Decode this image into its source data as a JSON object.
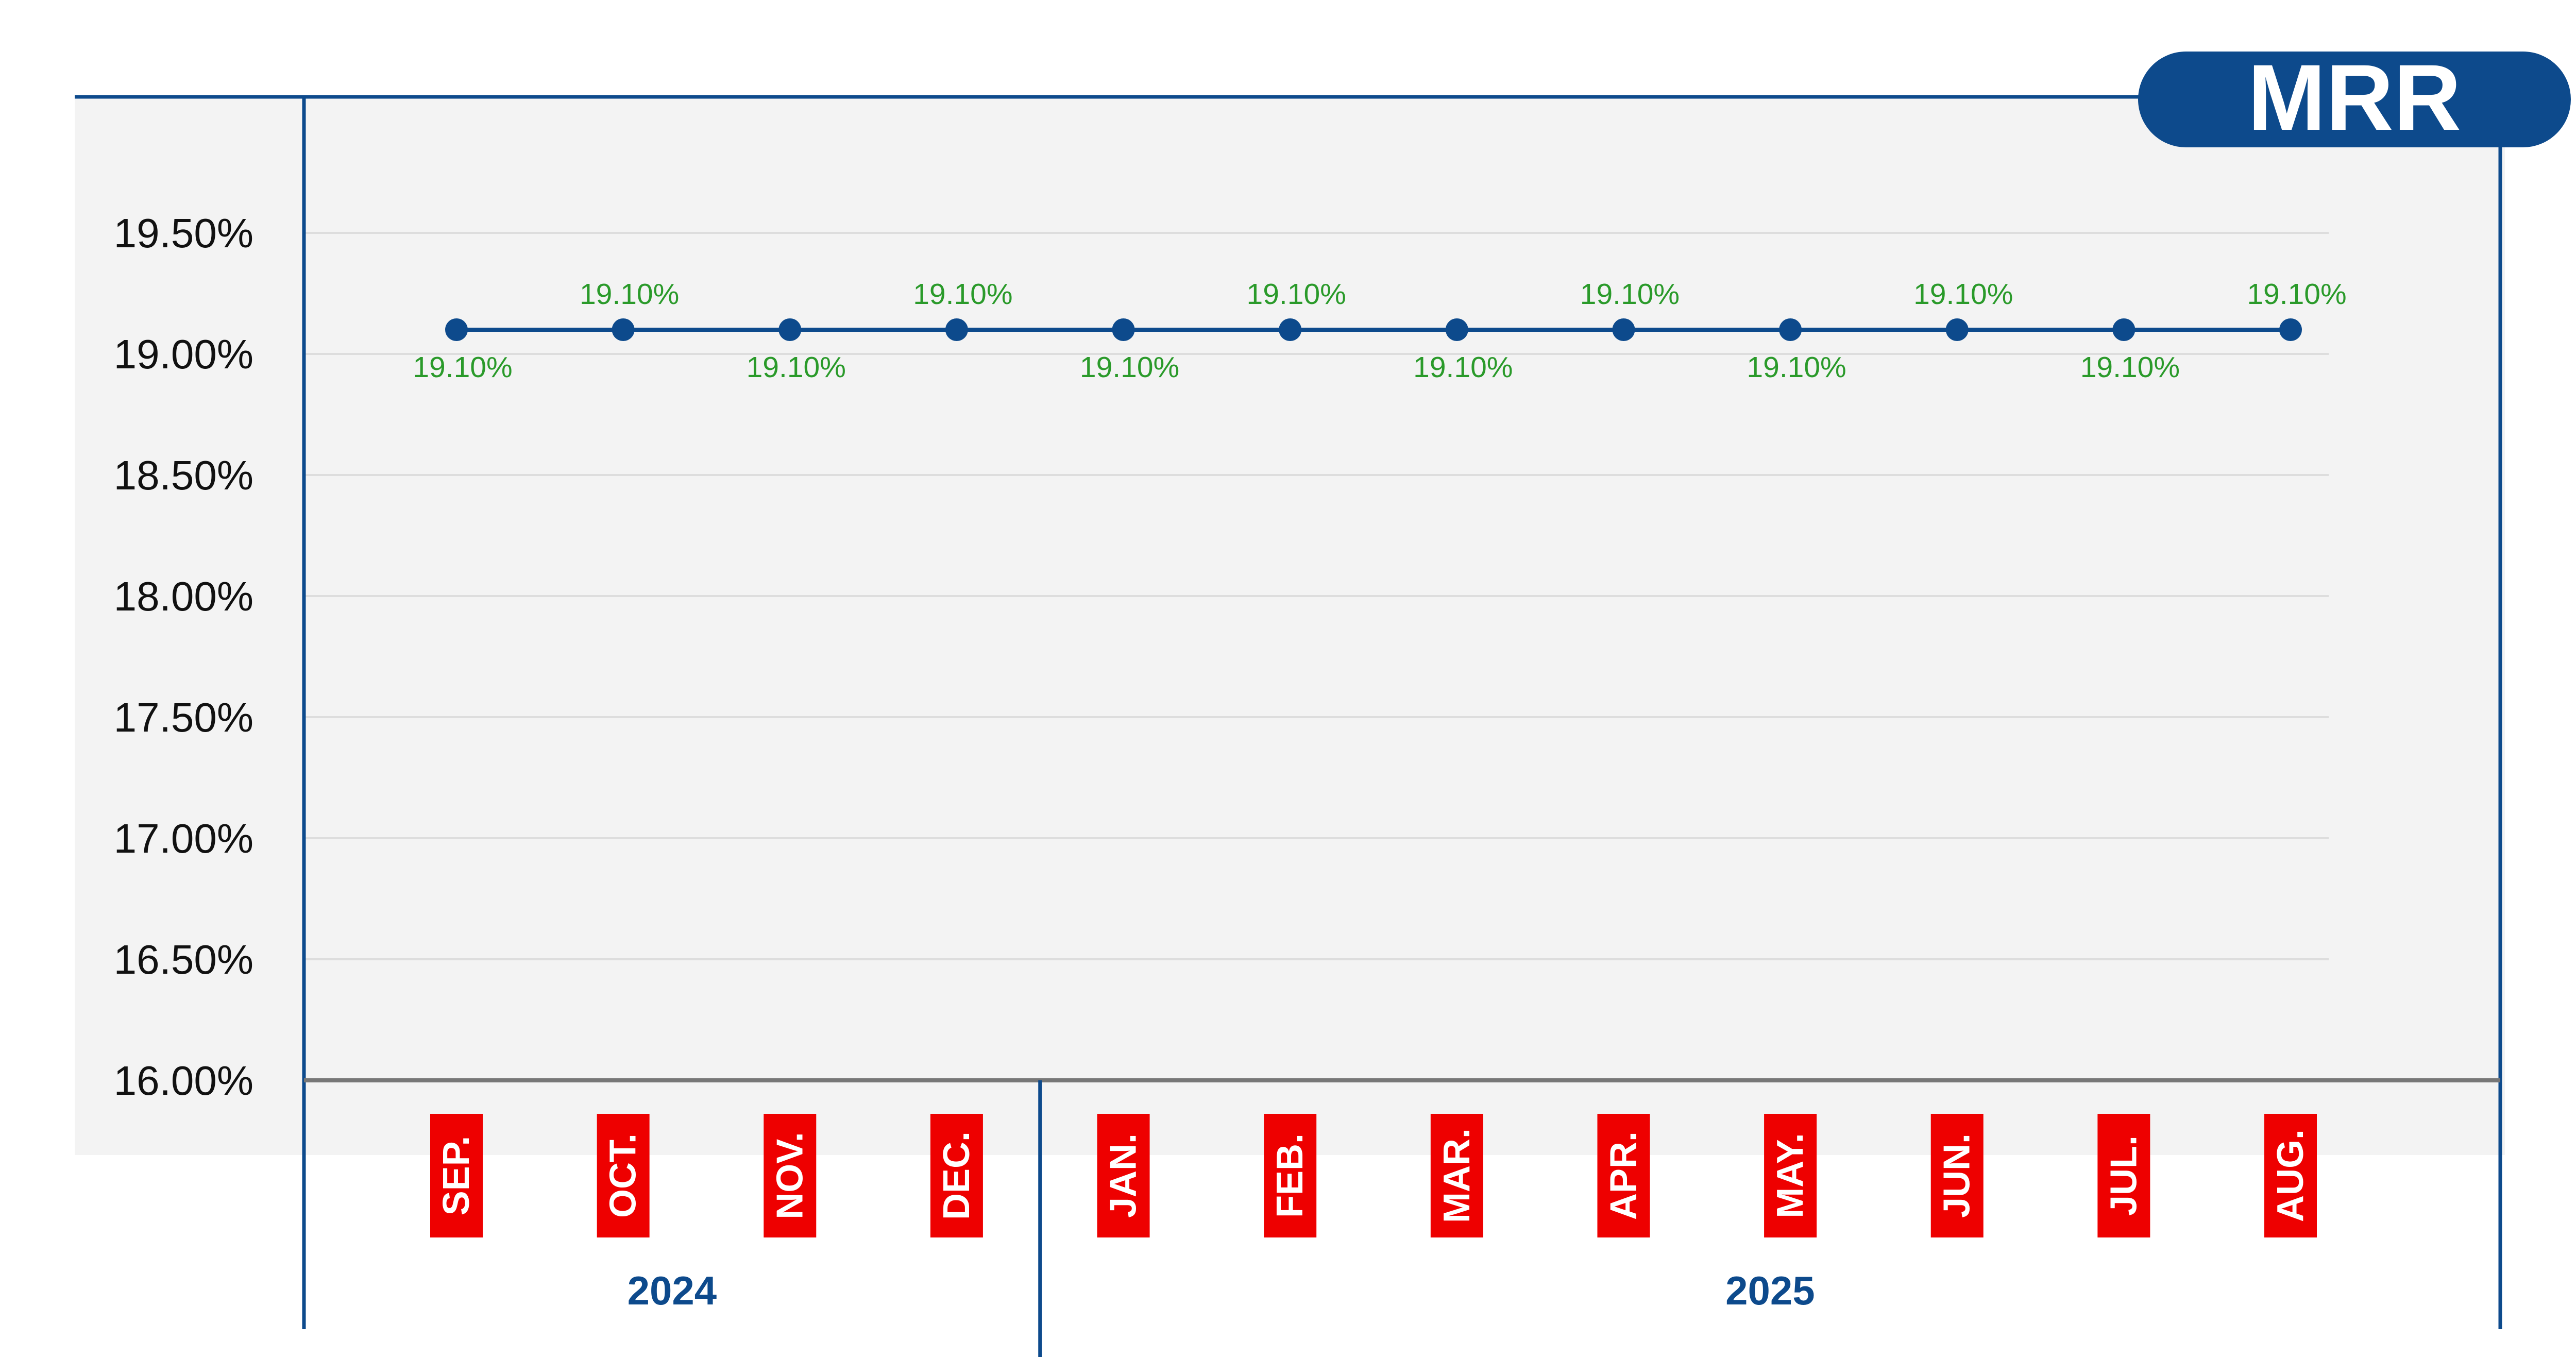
{
  "colors": {
    "line": "#0d4a8c",
    "point": "#0d4a8c",
    "label": "#2a9a2a",
    "month_bg": "#ee0000",
    "month_text": "#ffffff",
    "badge_bg": "#0d4a8c",
    "badge_text": "#ffffff",
    "plot_bg": "#f3f3f3",
    "frame": "#0d4a8c",
    "axis_base": "#777777",
    "grid": "#dddddd",
    "year_text": "#0d4a8c",
    "tick_text": "#111111"
  },
  "badge": {
    "text": "MRR"
  },
  "chart_data": {
    "type": "line",
    "title": "",
    "xlabel": "",
    "ylabel": "",
    "categories": [
      "SEP.",
      "OCT.",
      "NOV.",
      "DEC.",
      "JAN.",
      "FEB.",
      "MAR.",
      "APR.",
      "MAY.",
      "JUN.",
      "JUL.",
      "AUG."
    ],
    "series": [
      {
        "values": [
          19.1,
          19.1,
          19.1,
          19.1,
          19.1,
          19.1,
          19.1,
          19.1,
          19.1,
          19.1,
          19.1,
          19.1
        ]
      }
    ],
    "data_labels": [
      "19.10%",
      "19.10%",
      "19.10%",
      "19.10%",
      "19.10%",
      "19.10%",
      "19.10%",
      "19.10%",
      "19.10%",
      "19.10%",
      "19.10%",
      "19.10%"
    ],
    "data_label_positions": [
      "below",
      "above",
      "below",
      "above",
      "below",
      "above",
      "below",
      "above",
      "below",
      "above",
      "below",
      "above"
    ],
    "ylim": [
      16.0,
      19.75
    ],
    "yticks": [
      16.0,
      16.5,
      17.0,
      17.5,
      18.0,
      18.5,
      19.0,
      19.5
    ],
    "ytick_labels": [
      "16.00%",
      "16.50%",
      "17.00%",
      "17.50%",
      "18.00%",
      "18.50%",
      "19.00%",
      "19.50%"
    ],
    "grid": true,
    "legend": "none",
    "year_groups": [
      {
        "label": "2024",
        "count": 4
      },
      {
        "label": "2025",
        "count": 8
      }
    ]
  }
}
